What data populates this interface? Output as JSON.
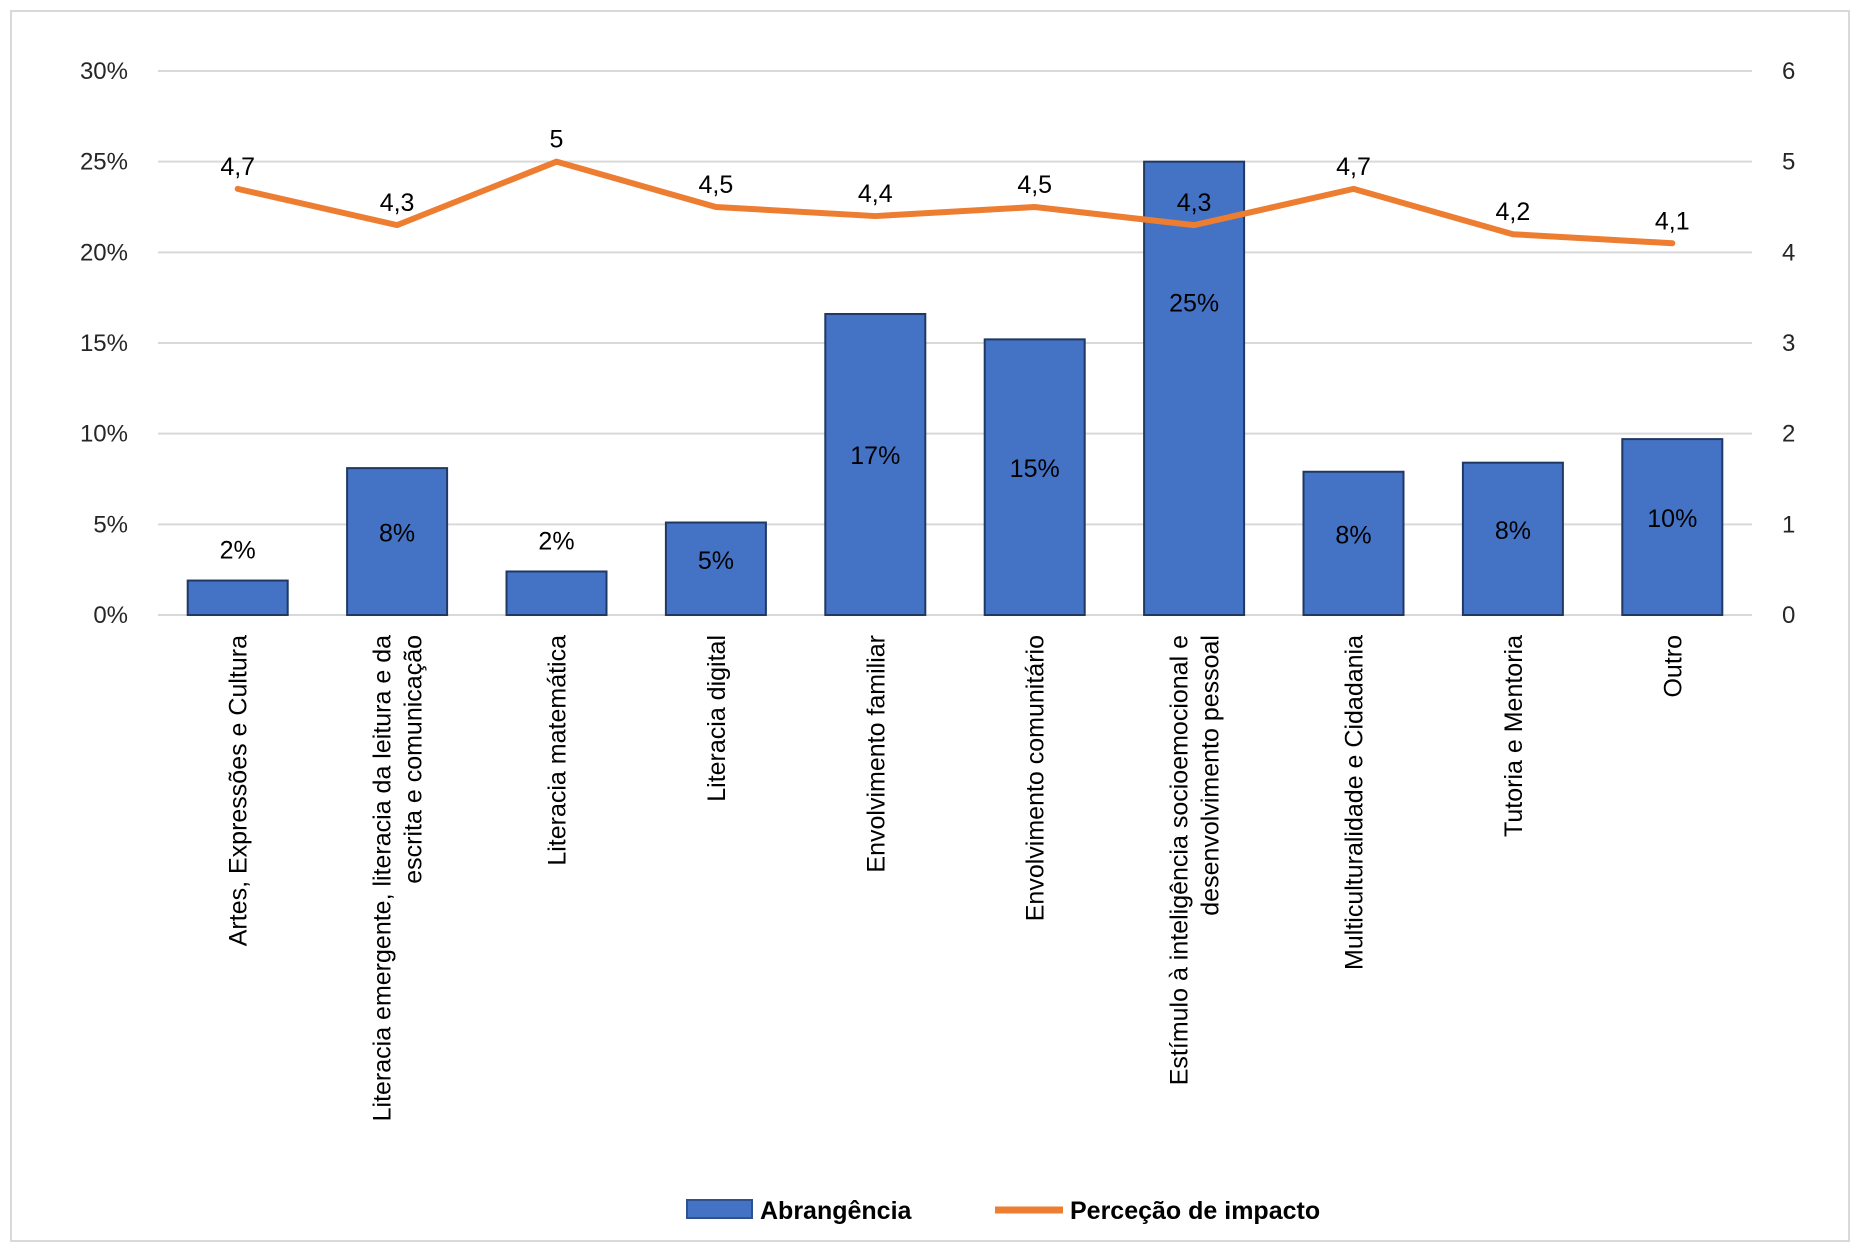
{
  "chart_data": {
    "type": "bar",
    "categories": [
      "Artes, Expressões e Cultura",
      "Literacia emergente, literacia da leitura e da escrita e comunicação",
      "Literacia matemática",
      "Literacia digital",
      "Envolvimento familiar",
      "Envolvimento comunitário",
      "Estímulo à inteligência socioemocional e desenvolvimento pessoal",
      "Multiculturalidade e Cidadania",
      "Tutoria e Mentoria",
      "Outro"
    ],
    "category_lines": [
      [
        "Artes, Expressões e Cultura"
      ],
      [
        "Literacia emergente, literacia da leitura e da",
        "escrita e comunicação"
      ],
      [
        "Literacia matemática"
      ],
      [
        "Literacia digital"
      ],
      [
        "Envolvimento familiar"
      ],
      [
        "Envolvimento comunitário"
      ],
      [
        "Estímulo à inteligência socioemocional e",
        "desenvolvimento pessoal"
      ],
      [
        "Multiculturalidade e Cidadania"
      ],
      [
        "Tutoria e Mentoria"
      ],
      [
        "Outro"
      ]
    ],
    "series": [
      {
        "name": "Abrangência",
        "type": "bar",
        "axis": "left",
        "color": "#4472C4",
        "values": [
          0.019,
          0.081,
          0.024,
          0.051,
          0.166,
          0.152,
          0.25,
          0.079,
          0.084,
          0.097
        ],
        "labels": [
          "2%",
          "8%",
          "2%",
          "5%",
          "17%",
          "15%",
          "25%",
          "8%",
          "8%",
          "10%"
        ]
      },
      {
        "name": "Perceção de impacto",
        "type": "line",
        "axis": "right",
        "color": "#ED7D31",
        "values": [
          4.7,
          4.3,
          5,
          4.5,
          4.4,
          4.5,
          4.3,
          4.7,
          4.2,
          4.1
        ],
        "labels": [
          "4,7",
          "4,3",
          "5",
          "4,5",
          "4,4",
          "4,5",
          "4,3",
          "4,7",
          "4,2",
          "4,1"
        ]
      }
    ],
    "y_left": {
      "ylim": [
        0,
        0.3
      ],
      "ticks": [
        "0%",
        "5%",
        "10%",
        "15%",
        "20%",
        "25%",
        "30%"
      ]
    },
    "y_right": {
      "ylim": [
        0,
        6
      ],
      "ticks": [
        "0",
        "1",
        "2",
        "3",
        "4",
        "5",
        "6"
      ]
    },
    "grid": true,
    "legend_position": "bottom",
    "legend": [
      "Abrangência",
      "Perceção de impacto"
    ]
  }
}
